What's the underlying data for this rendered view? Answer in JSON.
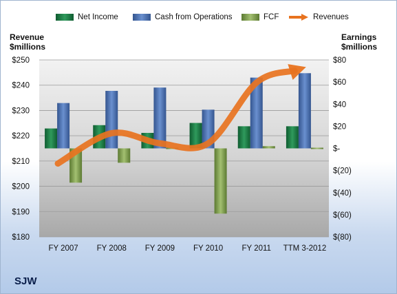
{
  "company": "SJW",
  "legend": {
    "net_income": "Net Income",
    "cash_from_operations": "Cash from Operations",
    "fcf": "FCF",
    "revenues": "Revenues"
  },
  "left_axis_title": [
    "Revenue",
    "$millions"
  ],
  "right_axis_title": [
    "Earnings",
    "$millions"
  ],
  "colors": {
    "net_income": "#1e7a45",
    "cash_from_operations": "#4a6fae",
    "fcf": "#7f9e4e",
    "revenues": "#e8731f",
    "plot_bg": "#d6d6d6"
  },
  "chart_data": {
    "type": "bar",
    "categories": [
      "FY 2007",
      "FY 2008",
      "FY 2009",
      "FY 2010",
      "FY 2011",
      "TTM 3-2012"
    ],
    "series": [
      {
        "name": "Net Income",
        "axis": "right",
        "values": [
          18,
          21,
          14,
          23,
          20,
          20
        ]
      },
      {
        "name": "Cash from Operations",
        "axis": "right",
        "values": [
          41,
          52,
          55,
          35,
          64,
          68
        ]
      },
      {
        "name": "FCF",
        "axis": "right",
        "values": [
          -31,
          -13,
          0,
          -59,
          2,
          0
        ]
      },
      {
        "name": "Revenues",
        "axis": "left",
        "type": "line",
        "values": [
          209,
          221,
          217,
          217,
          241,
          247
        ]
      }
    ],
    "left_axis": {
      "label": "Revenue $millions",
      "ylim": [
        180,
        250
      ],
      "ticks": [
        250,
        240,
        230,
        220,
        210,
        200,
        190,
        180
      ],
      "tick_labels": [
        "$250",
        "$240",
        "$230",
        "$220",
        "$210",
        "$200",
        "$190",
        "$180"
      ]
    },
    "right_axis": {
      "label": "Earnings $millions",
      "ylim": [
        -80,
        80
      ],
      "ticks": [
        80,
        60,
        40,
        20,
        0,
        -20,
        -40,
        -60,
        -80
      ],
      "tick_labels": [
        "$80",
        "$60",
        "$40",
        "$20",
        "$-",
        "$(20)",
        "$(40)",
        "$(60)",
        "$(80)"
      ]
    },
    "grid": true,
    "legend_position": "top"
  }
}
